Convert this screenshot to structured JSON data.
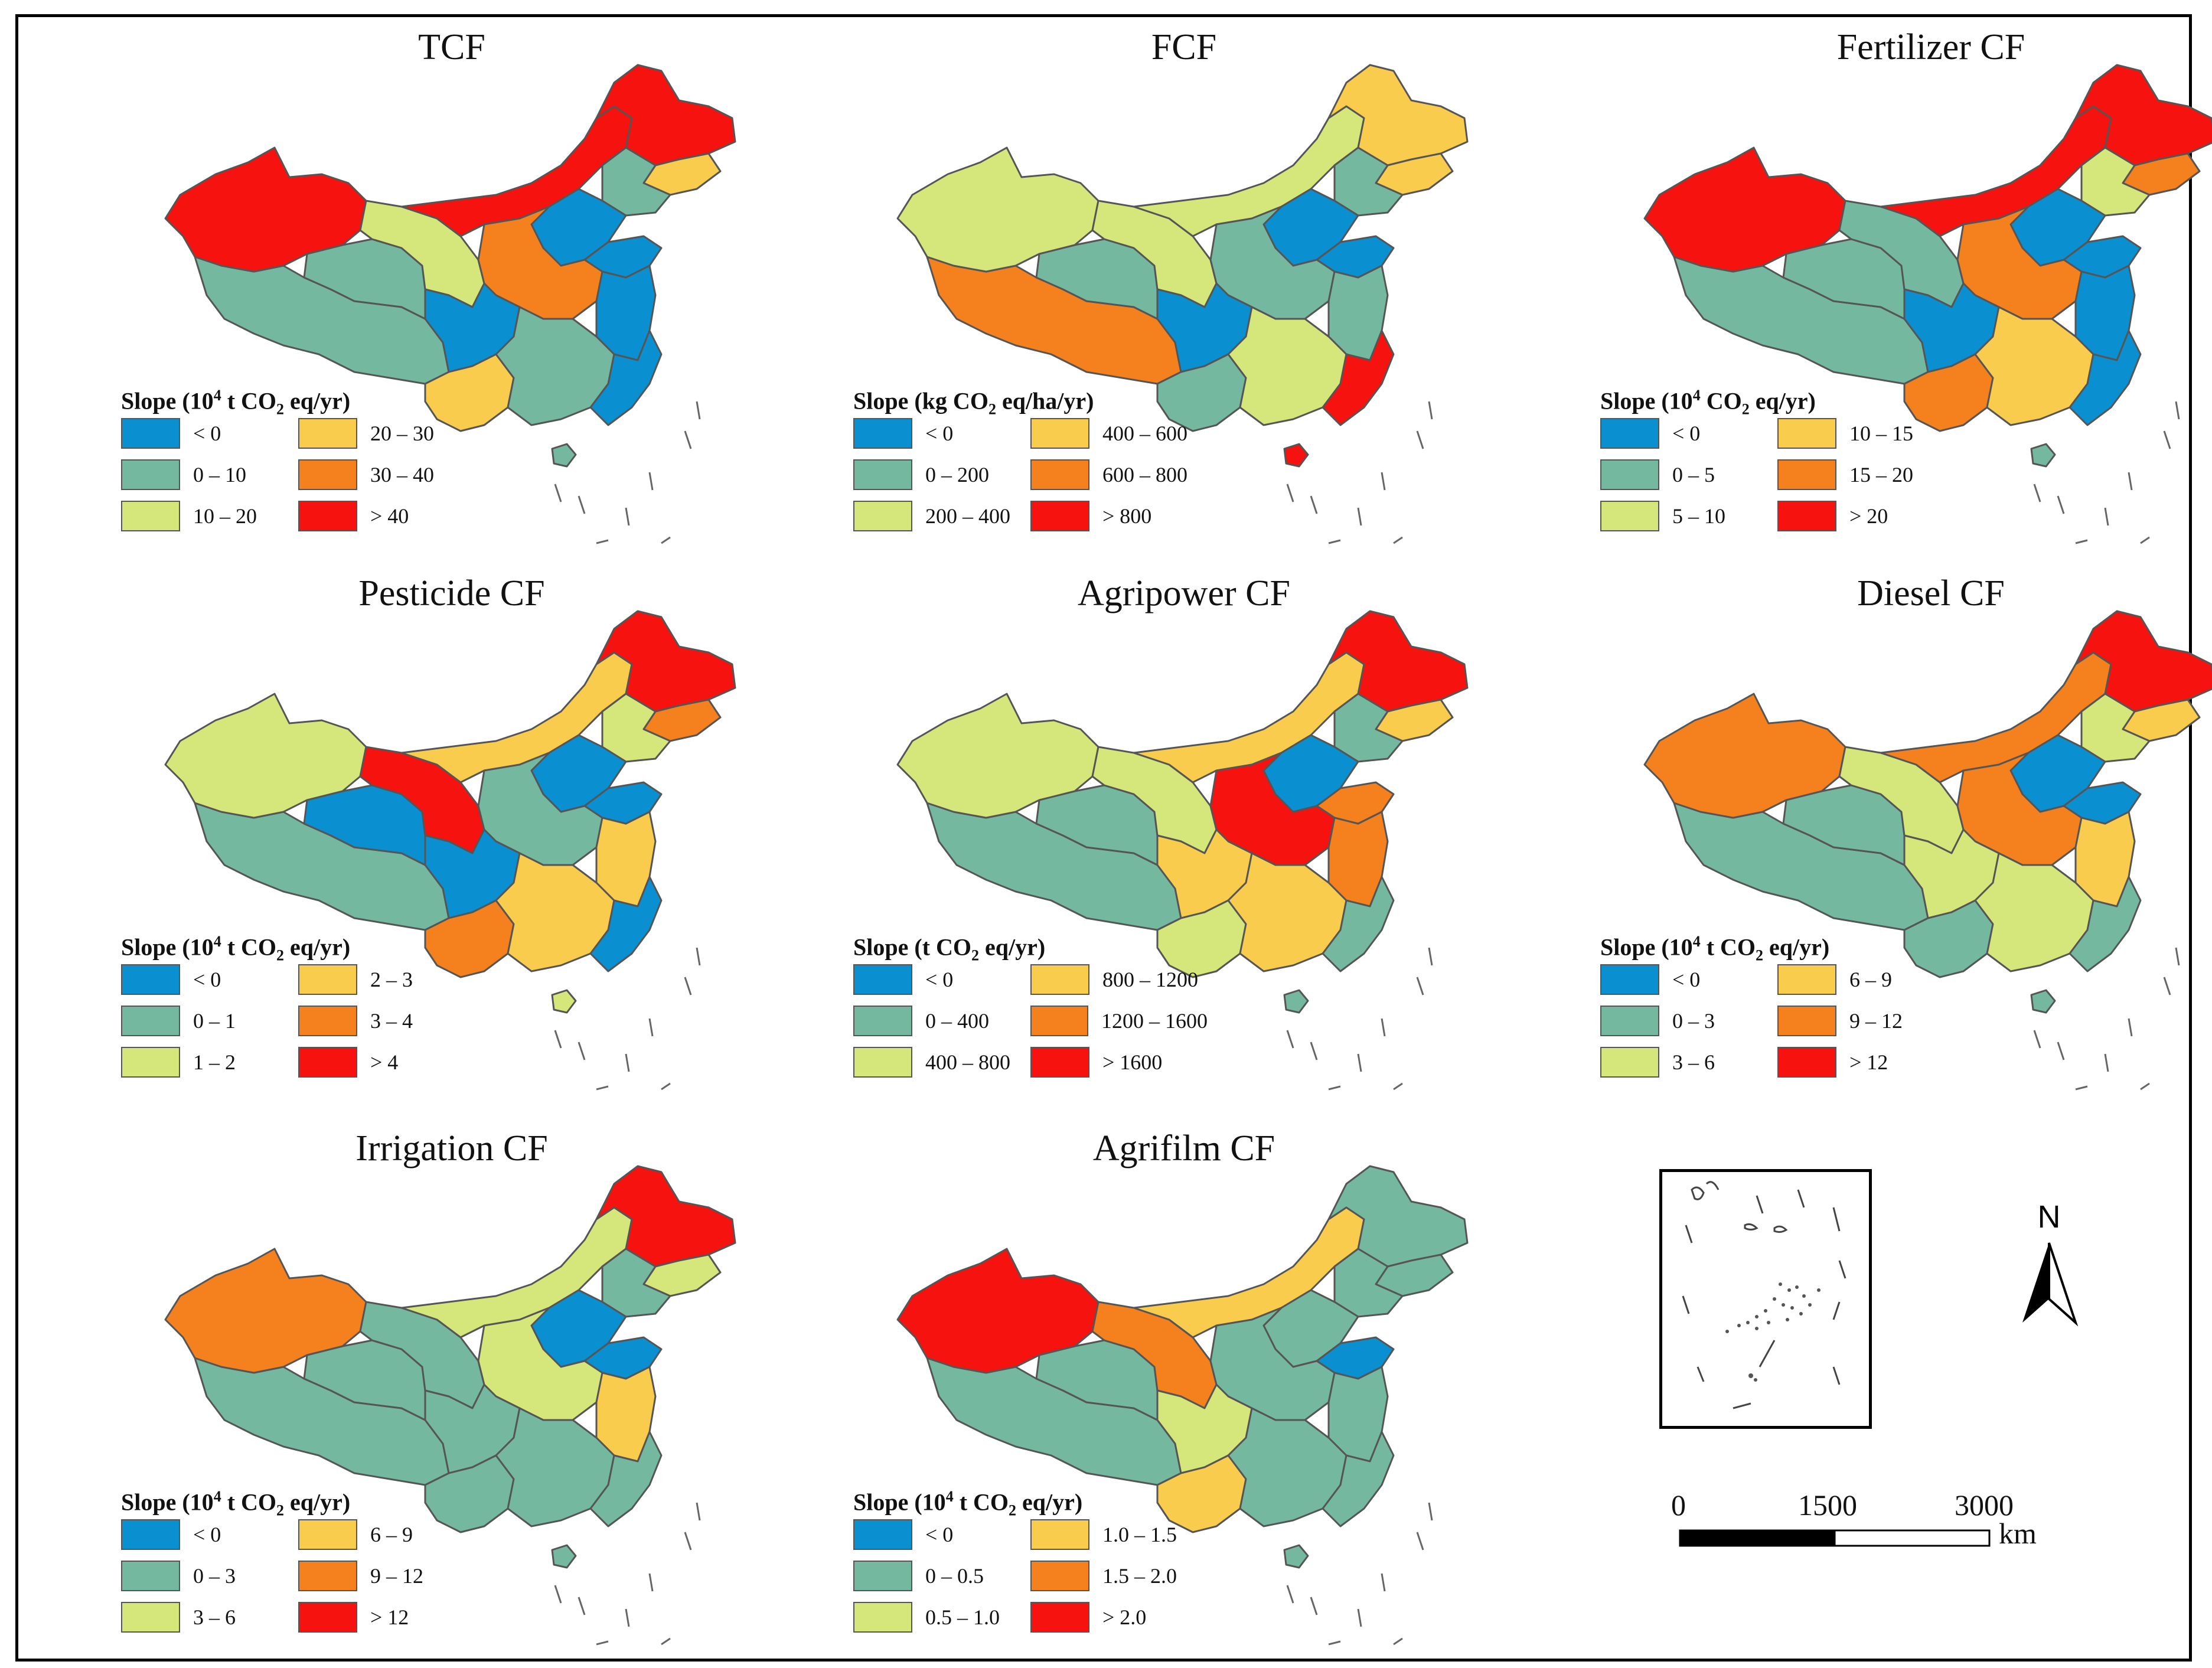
{
  "colors": {
    "blue": "#0a90d0",
    "teal": "#74b8a0",
    "lightgreen": "#d5e67a",
    "yellow": "#f9cc4e",
    "orange": "#f5801e",
    "red": "#f5120f",
    "outline": "#555555"
  },
  "swatch_keys": [
    "blue",
    "yellow",
    "teal",
    "orange",
    "lightgreen",
    "red"
  ],
  "panels": [
    {
      "title": "TCF",
      "legend": {
        "prefix": "Slope (10",
        "sup": "4",
        "mid": " t CO",
        "sub": "2",
        "suffix": " eq/yr)"
      },
      "labels": [
        "< 0",
        "20 – 30",
        "0 – 10",
        "30 – 40",
        "10 – 20",
        "> 40"
      ],
      "regions": {
        "xinjiang": "red",
        "tibet": "teal",
        "qinghai": "teal",
        "gansu": "lightgreen",
        "imongolia": "red",
        "heilongjiang": "red",
        "jilin": "yellow",
        "liaoning": "teal",
        "north": "blue",
        "shandong": "blue",
        "central": "orange",
        "east": "blue",
        "sichuan": "blue",
        "southwest": "yellow",
        "south": "teal",
        "southeast": "blue",
        "hainan": "teal"
      }
    },
    {
      "title": "FCF",
      "legend": {
        "prefix": "Slope (kg CO",
        "sup": "",
        "mid": "",
        "sub": "2",
        "suffix": " eq/ha/yr)"
      },
      "labels": [
        "< 0",
        "400 – 600",
        "0 – 200",
        "600 – 800",
        "200 – 400",
        "> 800"
      ],
      "regions": {
        "xinjiang": "lightgreen",
        "tibet": "orange",
        "qinghai": "teal",
        "gansu": "lightgreen",
        "imongolia": "lightgreen",
        "heilongjiang": "yellow",
        "jilin": "yellow",
        "liaoning": "teal",
        "north": "blue",
        "shandong": "blue",
        "central": "teal",
        "east": "teal",
        "sichuan": "blue",
        "southwest": "teal",
        "south": "lightgreen",
        "southeast": "red",
        "hainan": "red"
      }
    },
    {
      "title": "Fertilizer CF",
      "legend": {
        "prefix": "Slope (10",
        "sup": "4",
        "mid": " CO",
        "sub": "2",
        "suffix": " eq/yr)"
      },
      "labels": [
        "< 0",
        "10 – 15",
        "0 – 5",
        "15 – 20",
        "5 – 10",
        "> 20"
      ],
      "regions": {
        "xinjiang": "red",
        "tibet": "teal",
        "qinghai": "teal",
        "gansu": "teal",
        "imongolia": "red",
        "heilongjiang": "red",
        "jilin": "orange",
        "liaoning": "lightgreen",
        "north": "blue",
        "shandong": "blue",
        "central": "orange",
        "east": "blue",
        "sichuan": "blue",
        "southwest": "orange",
        "south": "yellow",
        "southeast": "blue",
        "hainan": "teal"
      }
    },
    {
      "title": "Pesticide CF",
      "legend": {
        "prefix": "Slope (10",
        "sup": "4",
        "mid": " t CO",
        "sub": "2",
        "suffix": " eq/yr)"
      },
      "labels": [
        "< 0",
        "2 – 3",
        "0 – 1",
        "3 – 4",
        "1 – 2",
        "> 4"
      ],
      "regions": {
        "xinjiang": "lightgreen",
        "tibet": "teal",
        "qinghai": "blue",
        "gansu": "red",
        "imongolia": "yellow",
        "heilongjiang": "red",
        "jilin": "orange",
        "liaoning": "lightgreen",
        "north": "blue",
        "shandong": "blue",
        "central": "teal",
        "east": "yellow",
        "sichuan": "blue",
        "southwest": "orange",
        "south": "yellow",
        "southeast": "blue",
        "hainan": "lightgreen"
      }
    },
    {
      "title": "Agripower CF",
      "legend": {
        "prefix": "Slope (t CO",
        "sup": "",
        "mid": "",
        "sub": "2",
        "suffix": " eq/yr)"
      },
      "labels": [
        "< 0",
        "800 – 1200",
        "0 – 400",
        "1200 – 1600",
        "400 – 800",
        "> 1600"
      ],
      "regions": {
        "xinjiang": "lightgreen",
        "tibet": "teal",
        "qinghai": "teal",
        "gansu": "lightgreen",
        "imongolia": "yellow",
        "heilongjiang": "red",
        "jilin": "yellow",
        "liaoning": "teal",
        "north": "blue",
        "shandong": "orange",
        "central": "red",
        "east": "orange",
        "sichuan": "yellow",
        "southwest": "lightgreen",
        "south": "yellow",
        "southeast": "teal",
        "hainan": "teal"
      }
    },
    {
      "title": "Diesel CF",
      "legend": {
        "prefix": "Slope (10",
        "sup": "4",
        "mid": " t CO",
        "sub": "2",
        "suffix": " eq/yr)"
      },
      "labels": [
        "< 0",
        "6 – 9",
        "0 – 3",
        "9 – 12",
        "3 – 6",
        "> 12"
      ],
      "regions": {
        "xinjiang": "orange",
        "tibet": "teal",
        "qinghai": "teal",
        "gansu": "lightgreen",
        "imongolia": "orange",
        "heilongjiang": "red",
        "jilin": "yellow",
        "liaoning": "lightgreen",
        "north": "blue",
        "shandong": "blue",
        "central": "orange",
        "east": "yellow",
        "sichuan": "lightgreen",
        "southwest": "teal",
        "south": "lightgreen",
        "southeast": "teal",
        "hainan": "teal"
      }
    },
    {
      "title": "Irrigation CF",
      "legend": {
        "prefix": "Slope (10",
        "sup": "4",
        "mid": " t CO",
        "sub": "2",
        "suffix": " eq/yr)"
      },
      "labels": [
        "< 0",
        "6 – 9",
        "0 – 3",
        "9 – 12",
        "3 – 6",
        "> 12"
      ],
      "regions": {
        "xinjiang": "orange",
        "tibet": "teal",
        "qinghai": "teal",
        "gansu": "teal",
        "imongolia": "lightgreen",
        "heilongjiang": "red",
        "jilin": "lightgreen",
        "liaoning": "teal",
        "north": "blue",
        "shandong": "blue",
        "central": "lightgreen",
        "east": "yellow",
        "sichuan": "teal",
        "southwest": "teal",
        "south": "teal",
        "southeast": "teal",
        "hainan": "teal"
      }
    },
    {
      "title": "Agrifilm CF",
      "legend": {
        "prefix": "Slope (10",
        "sup": "4",
        "mid": " t CO",
        "sub": "2",
        "suffix": " eq/yr)"
      },
      "labels": [
        "< 0",
        "1.0 – 1.5",
        "0 – 0.5",
        "1.5 – 2.0",
        "0.5 – 1.0",
        "> 2.0"
      ],
      "regions": {
        "xinjiang": "red",
        "tibet": "teal",
        "qinghai": "teal",
        "gansu": "orange",
        "imongolia": "yellow",
        "heilongjiang": "teal",
        "jilin": "teal",
        "liaoning": "teal",
        "north": "teal",
        "shandong": "blue",
        "central": "teal",
        "east": "teal",
        "sichuan": "lightgreen",
        "southwest": "yellow",
        "south": "teal",
        "southeast": "teal",
        "hainan": "teal"
      }
    }
  ],
  "north_arrow": {
    "label": "N"
  },
  "scale_bar": {
    "ticks": [
      "0",
      "1500",
      "3000"
    ],
    "unit": "km"
  }
}
